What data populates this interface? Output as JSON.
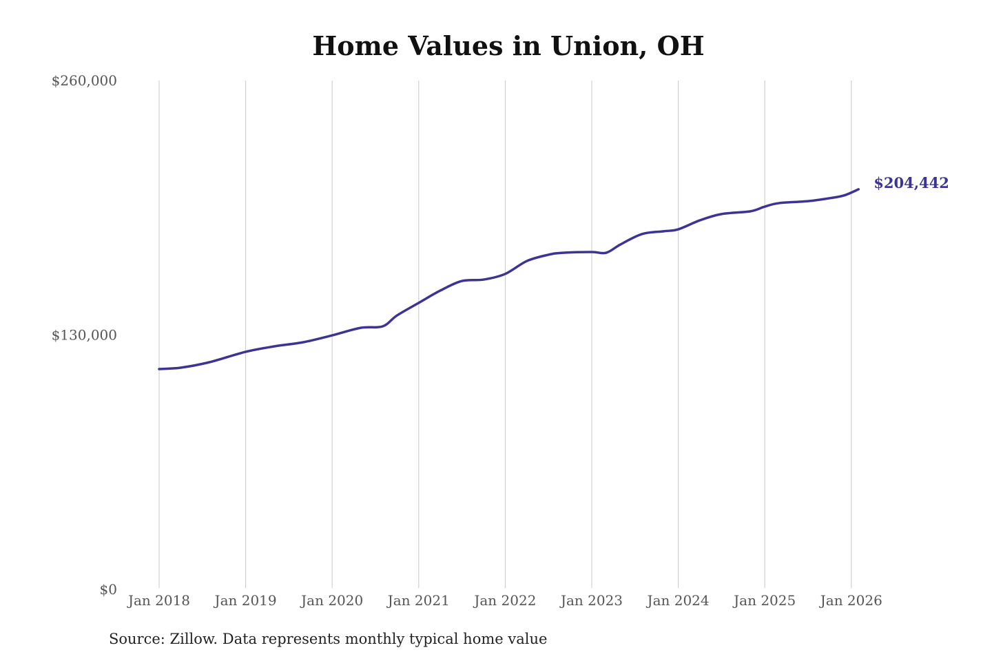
{
  "chart_data": {
    "type": "line",
    "title": "Home Values in Union, OH",
    "xlabel": "",
    "ylabel": "",
    "ylim": [
      0,
      260000
    ],
    "yticks": [
      0,
      130000,
      260000
    ],
    "ytick_labels": [
      "$0",
      "$130,000",
      "$260,000"
    ],
    "xticks": [
      "2018-01",
      "2019-01",
      "2020-01",
      "2021-01",
      "2022-01",
      "2023-01",
      "2024-01",
      "2025-01",
      "2026-01"
    ],
    "xtick_labels": [
      "Jan 2018",
      "Jan 2019",
      "Jan 2020",
      "Jan 2021",
      "Jan 2022",
      "Jan 2023",
      "Jan 2024",
      "Jan 2025",
      "Jan 2026"
    ],
    "grid": "vertical",
    "line_color": "#3b3494",
    "x": [
      "2018-01",
      "2018-04",
      "2018-08",
      "2019-01",
      "2019-05",
      "2019-09",
      "2020-01",
      "2020-05",
      "2020-08",
      "2020-10",
      "2021-01",
      "2021-04",
      "2021-07",
      "2021-10",
      "2022-01",
      "2022-04",
      "2022-07",
      "2022-09",
      "2023-01",
      "2023-03",
      "2023-05",
      "2023-08",
      "2023-11",
      "2024-01",
      "2024-04",
      "2024-07",
      "2024-11",
      "2025-01",
      "2025-03",
      "2025-07",
      "2025-10",
      "2025-12",
      "2026-02"
    ],
    "values": [
      112600,
      113300,
      116100,
      121400,
      124200,
      126300,
      129800,
      133700,
      134400,
      140000,
      146400,
      152700,
      157600,
      158300,
      161200,
      167800,
      171000,
      172000,
      172400,
      172000,
      176300,
      181600,
      183000,
      184000,
      188600,
      191800,
      193200,
      195600,
      197400,
      198400,
      199900,
      201300,
      204442
    ],
    "end_label": "$204,442",
    "source": "Source: Zillow. Data represents monthly typical home value"
  }
}
